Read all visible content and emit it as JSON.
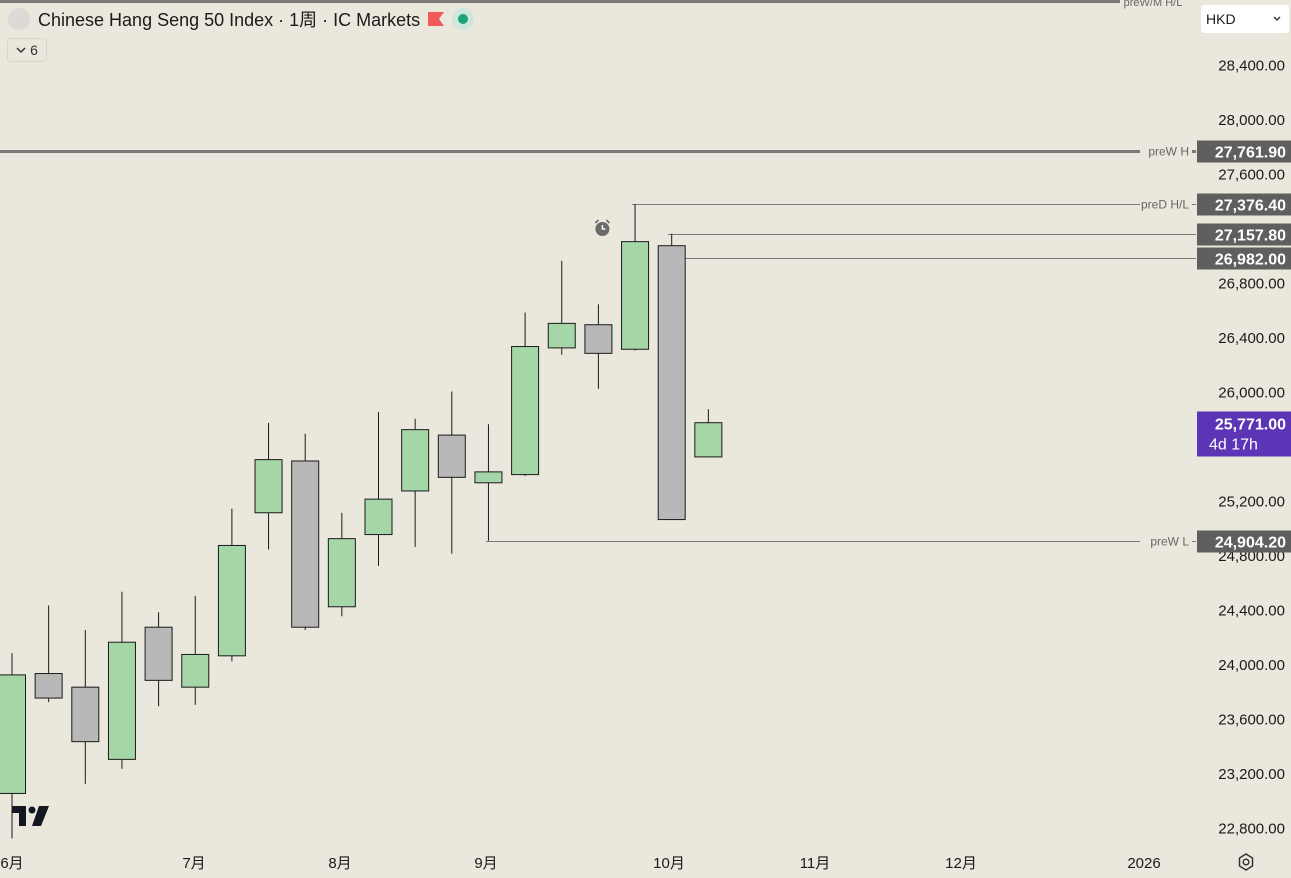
{
  "header": {
    "title": "Chinese Hang Seng 50 Index · 1周 · IC Markets",
    "indicator_count": "6",
    "currency": "HKD",
    "flag_color": "#f25a5a",
    "status_color": "#1aa37a"
  },
  "colors": {
    "bull": "#a5d6a7",
    "bear": "#b8b8b8",
    "wick": "#1a1a1a",
    "level_line": "#7a7a7a",
    "label_bg": "#5f5f5f",
    "current_bg": "#5b35b5"
  },
  "chart_data": {
    "type": "candlestick",
    "interval": "1周",
    "x_labels": [
      "6月",
      "7月",
      "8月",
      "9月",
      "10月",
      "11月",
      "12月",
      "2026"
    ],
    "y_ticks": [
      "22,800.00",
      "23,200.00",
      "23,600.00",
      "24,000.00",
      "24,400.00",
      "24,800.00",
      "25,200.00",
      "25,600.00",
      "26,000.00",
      "26,400.00",
      "26,800.00",
      "27,200.00",
      "27,600.00",
      "28,000.00",
      "28,400.00"
    ],
    "ylim": [
      22650,
      28750
    ],
    "candles": [
      {
        "date": "2025-06-02",
        "o": 23050,
        "h": 24080,
        "l": 22720,
        "c": 23920
      },
      {
        "date": "2025-06-09",
        "o": 23930,
        "h": 24430,
        "l": 23720,
        "c": 23750
      },
      {
        "date": "2025-06-16",
        "o": 23830,
        "h": 24250,
        "l": 23120,
        "c": 23430
      },
      {
        "date": "2025-06-23",
        "o": 23300,
        "h": 24530,
        "l": 23230,
        "c": 24160
      },
      {
        "date": "2025-06-30",
        "o": 24270,
        "h": 24380,
        "l": 23690,
        "c": 23880
      },
      {
        "date": "2025-07-07",
        "o": 23830,
        "h": 24500,
        "l": 23700,
        "c": 24070
      },
      {
        "date": "2025-07-14",
        "o": 24060,
        "h": 25140,
        "l": 24020,
        "c": 24870
      },
      {
        "date": "2025-07-21",
        "o": 25110,
        "h": 25770,
        "l": 24840,
        "c": 25500
      },
      {
        "date": "2025-07-28",
        "o": 25490,
        "h": 25690,
        "l": 24250,
        "c": 24270
      },
      {
        "date": "2025-08-04",
        "o": 24420,
        "h": 25110,
        "l": 24350,
        "c": 24920
      },
      {
        "date": "2025-08-11",
        "o": 24950,
        "h": 25850,
        "l": 24720,
        "c": 25210
      },
      {
        "date": "2025-08-18",
        "o": 25270,
        "h": 25800,
        "l": 24860,
        "c": 25720
      },
      {
        "date": "2025-08-25",
        "o": 25680,
        "h": 26000,
        "l": 24810,
        "c": 25370
      },
      {
        "date": "2025-09-01",
        "o": 25330,
        "h": 25760,
        "l": 24904.2,
        "c": 25410
      },
      {
        "date": "2025-09-08",
        "o": 25390,
        "h": 26580,
        "l": 25380,
        "c": 26330
      },
      {
        "date": "2025-09-15",
        "o": 26320,
        "h": 26960,
        "l": 26270,
        "c": 26500
      },
      {
        "date": "2025-09-22",
        "o": 26490,
        "h": 26640,
        "l": 26020,
        "c": 26280
      },
      {
        "date": "2025-09-29",
        "o": 26310,
        "h": 27376.4,
        "l": 26300,
        "c": 27100
      },
      {
        "date": "2025-10-06",
        "o": 27070,
        "h": 27157.8,
        "l": 25060,
        "c": 25060
      },
      {
        "date": "2025-10-13",
        "o": 25520,
        "h": 25870,
        "l": 25520,
        "c": 25771
      }
    ],
    "levels": [
      {
        "name": "preW/M H/L",
        "value": 28780,
        "label": "",
        "lbl_text_visible": false
      },
      {
        "name": "preW H",
        "value": 27761.9,
        "label": "27,761.90"
      },
      {
        "name": "preD H/L",
        "value": 27376.4,
        "label": "27,376.40"
      },
      {
        "name": "",
        "value": 27157.8,
        "label": "27,157.80"
      },
      {
        "name": "",
        "value": 26982.0,
        "label": "26,982.00"
      },
      {
        "name": "preW L",
        "value": 24904.2,
        "label": "24,904.20"
      }
    ],
    "current": {
      "price": 25771.0,
      "label": "25,771.00",
      "countdown": "4d 17h"
    }
  }
}
